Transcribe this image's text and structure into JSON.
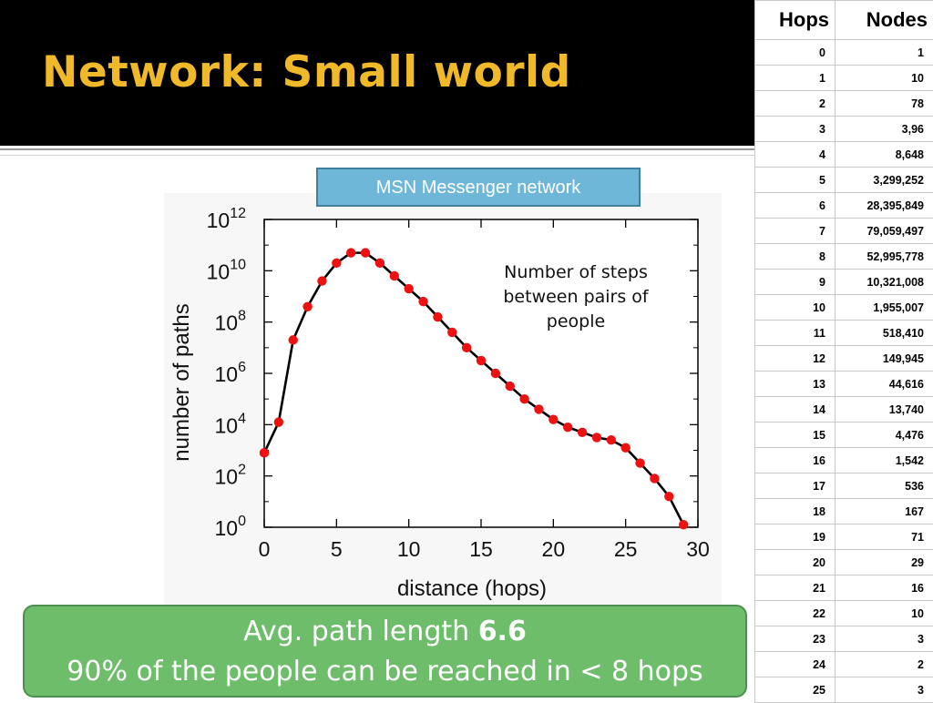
{
  "slide": {
    "title": "Network: Small world",
    "caption": "MSN Messenger network",
    "note": "Number of steps between pairs of people",
    "summary": {
      "line1_prefix": "Avg. path length ",
      "line1_value": "6.6",
      "line2": "90% of the people can be reached in < 8 hops"
    },
    "colors": {
      "title_bg": "#000000",
      "title_text": "#f0b92a",
      "caption_bg": "#6fb7d8",
      "summary_bg": "#6dbd6b",
      "marker": "#ee1111"
    }
  },
  "table": {
    "headers": [
      "Hops",
      "Nodes"
    ],
    "rows": [
      [
        "0",
        "1"
      ],
      [
        "1",
        "10"
      ],
      [
        "2",
        "78"
      ],
      [
        "3",
        "3,96"
      ],
      [
        "4",
        "8,648"
      ],
      [
        "5",
        "3,299,252"
      ],
      [
        "6",
        "28,395,849"
      ],
      [
        "7",
        "79,059,497"
      ],
      [
        "8",
        "52,995,778"
      ],
      [
        "9",
        "10,321,008"
      ],
      [
        "10",
        "1,955,007"
      ],
      [
        "11",
        "518,410"
      ],
      [
        "12",
        "149,945"
      ],
      [
        "13",
        "44,616"
      ],
      [
        "14",
        "13,740"
      ],
      [
        "15",
        "4,476"
      ],
      [
        "16",
        "1,542"
      ],
      [
        "17",
        "536"
      ],
      [
        "18",
        "167"
      ],
      [
        "19",
        "71"
      ],
      [
        "20",
        "29"
      ],
      [
        "21",
        "16"
      ],
      [
        "22",
        "10"
      ],
      [
        "23",
        "3"
      ],
      [
        "24",
        "2"
      ],
      [
        "25",
        "3"
      ]
    ]
  },
  "chart_data": {
    "type": "line",
    "xlabel": "distance (hops)",
    "ylabel": "number of paths",
    "xlim": [
      0,
      30
    ],
    "ylim_log10": [
      0,
      12
    ],
    "y_scale": "log",
    "x_ticks": [
      "0",
      "5",
      "10",
      "15",
      "20",
      "25",
      "30"
    ],
    "y_tick_exponents": [
      "0",
      "2",
      "4",
      "6",
      "8",
      "10",
      "12"
    ],
    "y_tick_base": "10",
    "grid": false,
    "x": [
      0,
      1,
      2,
      3,
      4,
      5,
      6,
      7,
      8,
      9,
      10,
      11,
      12,
      13,
      14,
      15,
      16,
      17,
      18,
      19,
      20,
      21,
      22,
      23,
      24,
      25,
      26,
      27,
      28,
      29
    ],
    "y_log10": [
      2.9,
      4.1,
      7.3,
      8.6,
      9.6,
      10.3,
      10.7,
      10.7,
      10.3,
      9.8,
      9.3,
      8.8,
      8.2,
      7.6,
      7.0,
      6.5,
      6.0,
      5.5,
      5.0,
      4.6,
      4.2,
      3.9,
      3.7,
      3.5,
      3.4,
      3.1,
      2.5,
      1.9,
      1.2,
      0.1
    ]
  }
}
